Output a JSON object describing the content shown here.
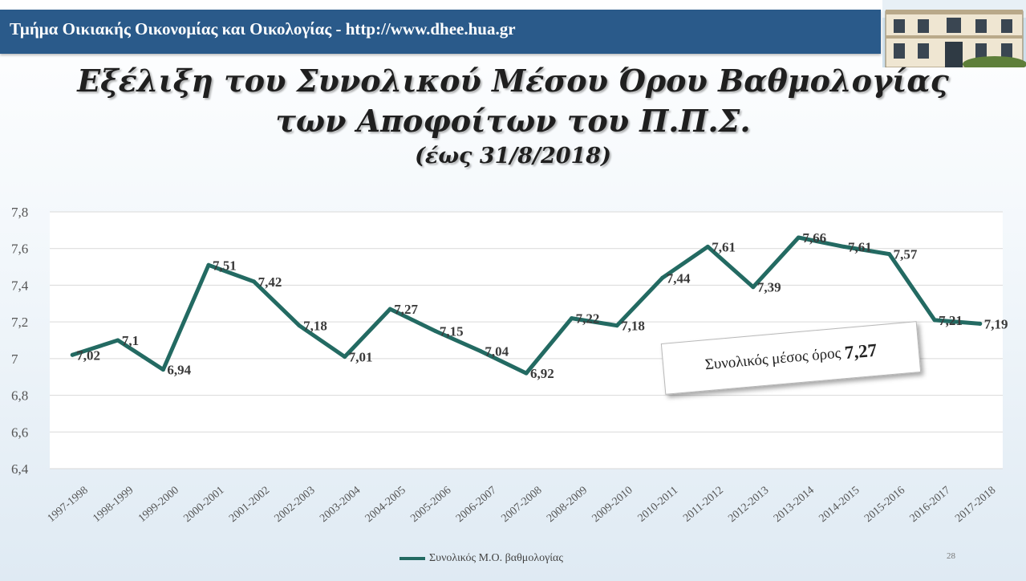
{
  "header": {
    "text": "Τμήμα Οικιακής Οικονομίας και Οικολογίας - http://www.dhee.hua.gr"
  },
  "title": {
    "line1": "Εξέλιξη του Συνολικού Μέσου Όρου Βαθμολογίας",
    "line2": "των Αποφοίτων του Π.Π.Σ.",
    "line3": "(έως 31/8/2018)"
  },
  "callout": {
    "label": "Συνολικός μέσος όρος",
    "value": "7,27"
  },
  "page_number": "28",
  "colors": {
    "header_bar": "#2a5a8a",
    "line": "#236a62",
    "plot_background": "#ffffff",
    "gridline": "#d9d9d9"
  },
  "chart_data": {
    "type": "line",
    "title": "",
    "xlabel": "",
    "ylabel": "",
    "categories": [
      "1997-1998",
      "1998-1999",
      "1999-2000",
      "2000-2001",
      "2001-2002",
      "2002-2003",
      "2003-2004",
      "2004-2005",
      "2005-2006",
      "2006-2007",
      "2007-2008",
      "2008-2009",
      "2009-2010",
      "2010-2011",
      "2011-2012",
      "2012-2013",
      "2013-2014",
      "2014-2015",
      "2015-2016",
      "2016-2017",
      "2017-2018"
    ],
    "series": [
      {
        "name": "Συνολικός Μ.Ο. βαθμολογίας",
        "values": [
          7.02,
          7.1,
          6.94,
          7.51,
          7.42,
          7.18,
          7.01,
          7.27,
          7.15,
          7.04,
          6.92,
          7.22,
          7.18,
          7.44,
          7.61,
          7.39,
          7.66,
          7.61,
          7.57,
          7.21,
          7.19
        ],
        "labels": [
          "7,02",
          "7,1",
          "6,94",
          "7,51",
          "7,42",
          "7,18",
          "7,01",
          "7,27",
          "7,15",
          "7,04",
          "6,92",
          "7,22",
          "7,18",
          "7,44",
          "7,61",
          "7,39",
          "7,66",
          "7,61",
          "7,57",
          "7,21",
          "7,19"
        ]
      }
    ],
    "ylim": [
      6.4,
      7.8
    ],
    "yticks": [
      6.4,
      6.6,
      6.8,
      7.0,
      7.2,
      7.4,
      7.6,
      7.8
    ],
    "ytick_labels": [
      "6,4",
      "6,6",
      "6,8",
      "7",
      "7,2",
      "7,4",
      "7,6",
      "7,8"
    ],
    "grid": true,
    "legend_position": "bottom"
  }
}
